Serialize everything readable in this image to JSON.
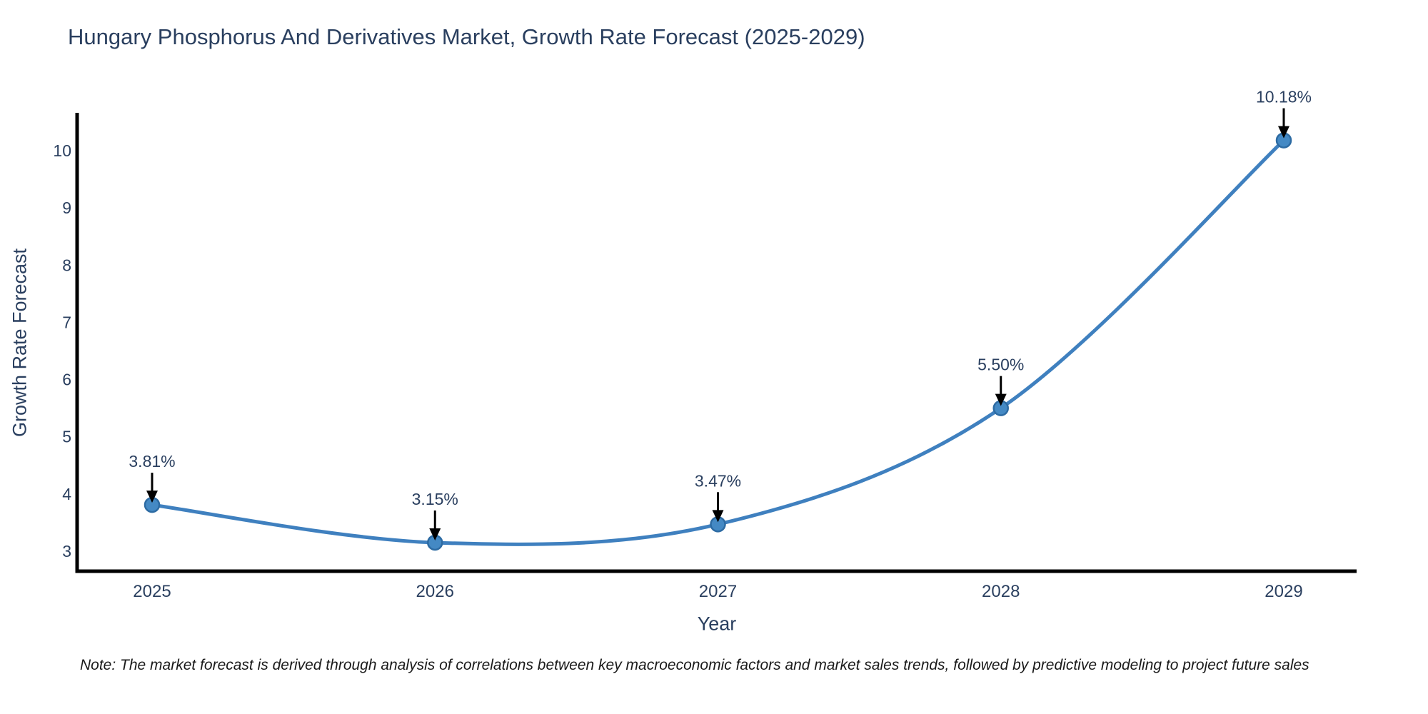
{
  "page": {
    "title": "Hungary Phosphorus And Derivatives Market, Growth Rate Forecast (2025-2029)",
    "note": "Note: The market forecast is derived through analysis of correlations between key macroeconomic factors and market sales trends, followed by predictive modeling to project future sales"
  },
  "chart_data": {
    "type": "line",
    "title": "Hungary Phosphorus And Derivatives Market, Growth Rate Forecast (2025-2029)",
    "xlabel": "Year",
    "ylabel": "Growth Rate Forecast",
    "x": [
      2025,
      2026,
      2027,
      2028,
      2029
    ],
    "series": [
      {
        "name": "Growth Rate Forecast",
        "values": [
          3.81,
          3.15,
          3.47,
          5.5,
          10.18
        ]
      }
    ],
    "point_labels": [
      "3.81%",
      "3.15%",
      "3.47%",
      "5.50%",
      "10.18%"
    ],
    "yticks": [
      3,
      4,
      5,
      6,
      7,
      8,
      9,
      10
    ],
    "xticks": [
      2025,
      2026,
      2027,
      2028,
      2029
    ],
    "ylim": [
      2.65,
      10.65
    ],
    "xlim": [
      2024.73,
      2029.26
    ],
    "line_shape": "spline",
    "markers": true,
    "grid": false,
    "legend": "none",
    "annotations": "value labels with black arrows above each point",
    "colors": {
      "line": "#3f80bf",
      "marker_fill": "#4489c4",
      "marker_edge": "#2d6ba3",
      "axis_line": "#000000",
      "text": "#2a3f5f",
      "annotation_arrow": "#000000",
      "note_text": "#1a1a1a"
    }
  }
}
